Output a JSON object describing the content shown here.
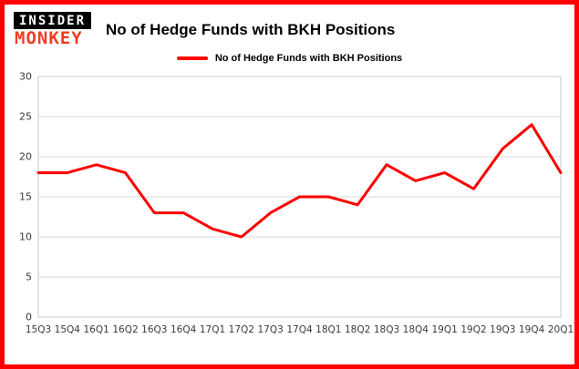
{
  "header": {
    "logo_line1": "INSIDER",
    "logo_line2": "MONKEY",
    "title": "No of Hedge Funds with BKH Positions"
  },
  "legend": {
    "label": "No of Hedge Funds with BKH Positions"
  },
  "chart_data": {
    "type": "line",
    "title": "No of Hedge Funds with BKH Positions",
    "categories": [
      "15Q3",
      "15Q4",
      "16Q1",
      "16Q2",
      "16Q3",
      "16Q4",
      "17Q1",
      "17Q2",
      "17Q3",
      "17Q4",
      "18Q1",
      "18Q2",
      "18Q3",
      "18Q4",
      "19Q1",
      "19Q2",
      "19Q3",
      "19Q4",
      "20Q1"
    ],
    "values": [
      18,
      18,
      19,
      18,
      13,
      13,
      11,
      10,
      13,
      15,
      15,
      14,
      19,
      17,
      18,
      16,
      21,
      24,
      18
    ],
    "xlabel": "",
    "ylabel": "",
    "ylim": [
      0,
      30
    ],
    "yticks": [
      0,
      5,
      10,
      15,
      20,
      25,
      30
    ],
    "grid": true,
    "legend_position": "top-center",
    "line_color": "#fe0000"
  },
  "colors": {
    "frame_border": "#fe0000",
    "line": "#fe0000",
    "logo_accent": "#ee3d23",
    "grid": "#d8d8d8",
    "axis_text": "#3a3a3a"
  }
}
